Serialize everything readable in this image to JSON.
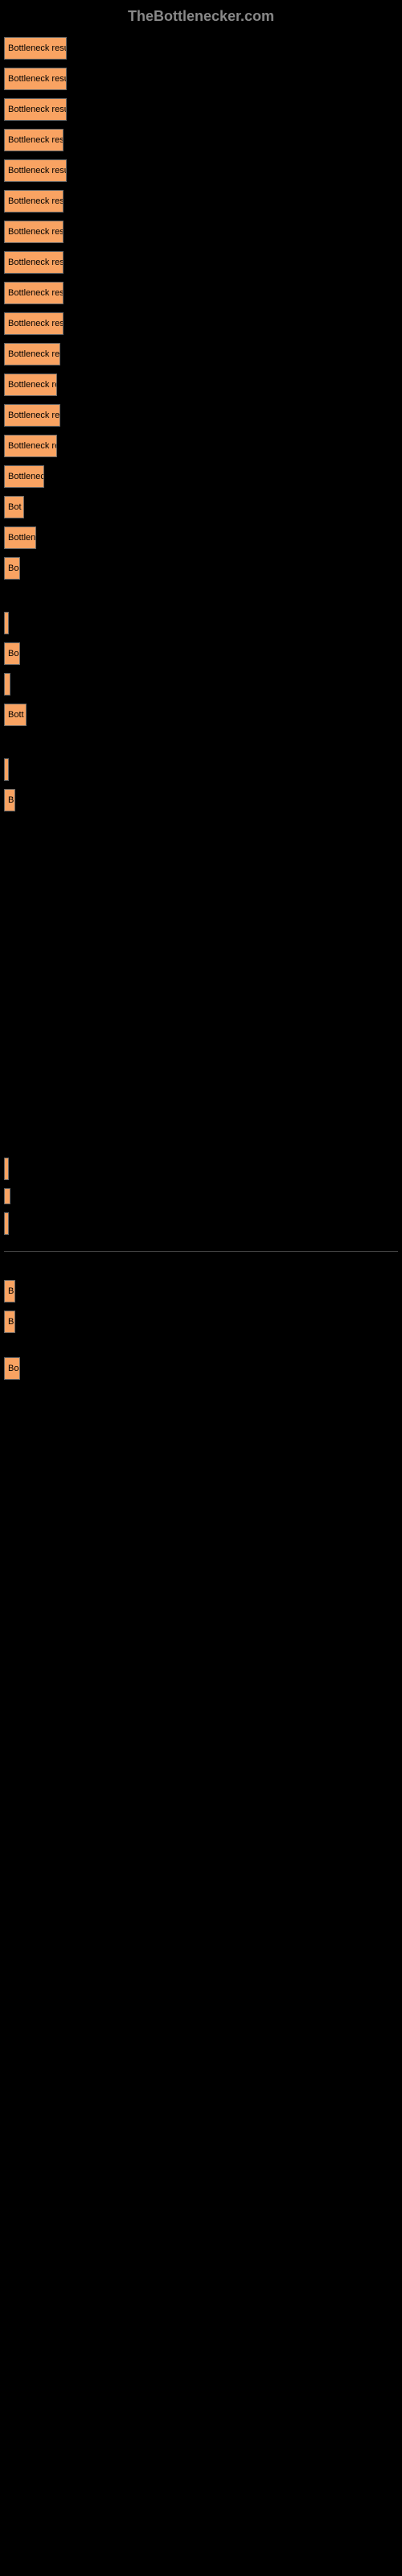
{
  "header": "TheBottlenecker.com",
  "bars": [
    {
      "label": "",
      "text": "Bottleneck result",
      "width": 78
    },
    {
      "label": "",
      "text": "Bottleneck result",
      "width": 78
    },
    {
      "label": "",
      "text": "Bottleneck result",
      "width": 78
    },
    {
      "label": "",
      "text": "Bottleneck resu",
      "width": 74
    },
    {
      "label": "",
      "text": "Bottleneck result",
      "width": 78
    },
    {
      "label": "",
      "text": "Bottleneck resu",
      "width": 74
    },
    {
      "label": "",
      "text": "Bottleneck resu",
      "width": 74
    },
    {
      "label": "",
      "text": "Bottleneck resu",
      "width": 74
    },
    {
      "label": "",
      "text": "Bottleneck resu",
      "width": 74
    },
    {
      "label": "",
      "text": "Bottleneck resu",
      "width": 74
    },
    {
      "label": "",
      "text": "Bottleneck res",
      "width": 70
    },
    {
      "label": "",
      "text": "Bottleneck re",
      "width": 66
    },
    {
      "label": "",
      "text": "Bottleneck res",
      "width": 70
    },
    {
      "label": "",
      "text": "Bottleneck re",
      "width": 66
    },
    {
      "label": "",
      "text": "Bottlenec",
      "width": 50
    },
    {
      "label": "",
      "text": "Bot",
      "width": 25
    },
    {
      "label": "",
      "text": "Bottlen",
      "width": 40
    },
    {
      "label": "",
      "text": "Bo",
      "width": 20
    },
    {
      "label": "",
      "text": "",
      "width": 4,
      "spacer_before": 30
    },
    {
      "label": "",
      "text": "Bo",
      "width": 20
    },
    {
      "label": "",
      "text": "",
      "width": 8
    },
    {
      "label": "",
      "text": "Bott",
      "width": 28
    },
    {
      "label": "",
      "text": "",
      "width": 4,
      "spacer_before": 30
    },
    {
      "label": "",
      "text": "B",
      "width": 14
    },
    {
      "label": "",
      "text": "",
      "width": 4,
      "spacer_before": 420
    },
    {
      "label": "",
      "text": "",
      "width": 8,
      "thin": true
    },
    {
      "label": "",
      "text": "",
      "width": 6,
      "separator_after": true
    },
    {
      "label": "",
      "text": "B",
      "width": 14,
      "spacer_before": 30
    },
    {
      "label": "",
      "text": "B",
      "width": 14
    },
    {
      "label": "",
      "text": "Bo",
      "width": 20,
      "spacer_before": 20
    }
  ],
  "colors": {
    "background": "#000000",
    "bar_fill": "#f9a362",
    "bar_border": "#666666",
    "text_muted": "#888888",
    "bar_text": "#000000"
  }
}
